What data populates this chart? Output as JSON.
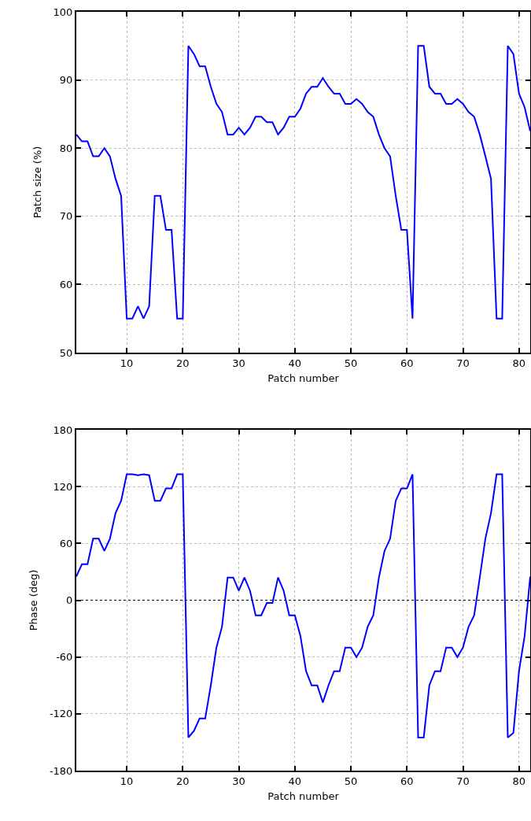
{
  "chart_data": [
    {
      "type": "line",
      "xlabel": "Patch number",
      "ylabel": "Patch size (%)",
      "x": [
        1,
        2,
        3,
        4,
        5,
        6,
        7,
        8,
        9,
        10,
        11,
        12,
        13,
        14,
        15,
        16,
        17,
        18,
        19,
        20,
        21,
        22,
        23,
        24,
        25,
        26,
        27,
        28,
        29,
        30,
        31,
        32,
        33,
        34,
        35,
        36,
        37,
        38,
        39,
        40,
        41,
        42,
        43,
        44,
        45,
        46,
        47,
        48,
        49,
        50,
        51,
        52,
        53,
        54,
        55,
        56,
        57,
        58,
        59,
        60,
        61,
        62,
        63,
        64,
        65,
        66,
        67,
        68,
        69,
        70,
        71,
        72,
        73,
        74,
        75,
        76,
        77,
        78,
        79,
        80,
        81,
        82
      ],
      "series": [
        {
          "color": "#0000ff",
          "values": [
            82,
            81,
            81,
            78.8,
            78.8,
            80,
            78.8,
            75.5,
            73,
            55,
            55,
            56.8,
            55,
            56.8,
            73,
            73,
            68,
            68,
            55,
            55,
            95,
            93.8,
            92,
            92,
            89,
            86.5,
            85.3,
            82,
            82,
            83,
            82,
            83,
            84.6,
            84.6,
            83.8,
            83.8,
            82,
            83,
            84.6,
            84.6,
            85.8,
            88,
            89,
            89,
            90.3,
            89,
            88,
            88,
            86.5,
            86.5,
            87.2,
            86.5,
            85.3,
            84.6,
            82,
            80,
            78.8,
            73,
            68,
            68,
            55,
            95,
            95,
            89,
            88,
            88,
            86.5,
            86.5,
            87.2,
            86.5,
            85.3,
            84.6,
            82,
            78.8,
            75.5,
            55,
            55,
            95,
            93.8,
            88,
            86,
            82.5
          ]
        }
      ],
      "xlim": [
        1,
        82
      ],
      "xticks": [
        10,
        20,
        30,
        40,
        50,
        60,
        70,
        80
      ],
      "ylim": [
        50,
        100
      ],
      "yticks": [
        50,
        60,
        70,
        80,
        90,
        100
      ],
      "grid": true,
      "marker": "none",
      "line_style": "solid"
    },
    {
      "type": "line",
      "xlabel": "Patch number",
      "ylabel": "Phase (deg)",
      "x": [
        1,
        2,
        3,
        4,
        5,
        6,
        7,
        8,
        9,
        10,
        11,
        12,
        13,
        14,
        15,
        16,
        17,
        18,
        19,
        20,
        21,
        22,
        23,
        24,
        25,
        26,
        27,
        28,
        29,
        30,
        31,
        32,
        33,
        34,
        35,
        36,
        37,
        38,
        39,
        40,
        41,
        42,
        43,
        44,
        45,
        46,
        47,
        48,
        49,
        50,
        51,
        52,
        53,
        54,
        55,
        56,
        57,
        58,
        59,
        60,
        61,
        62,
        63,
        64,
        65,
        66,
        67,
        68,
        69,
        70,
        71,
        72,
        73,
        74,
        75,
        76,
        77,
        78,
        79,
        80,
        81,
        82
      ],
      "series": [
        {
          "color": "#0000ff",
          "values": [
            25,
            38,
            38,
            65,
            65,
            52,
            65,
            92,
            105,
            133,
            133,
            132,
            133,
            132,
            105,
            105,
            118,
            118,
            133,
            133,
            -145,
            -138,
            -125,
            -125,
            -90,
            -50,
            -28,
            24,
            24,
            10,
            24,
            10,
            -16,
            -16,
            -3,
            -3,
            24,
            10,
            -16,
            -16,
            -38,
            -75,
            -90,
            -90,
            -108,
            -90,
            -75,
            -75,
            -50,
            -50,
            -60,
            -50,
            -28,
            -16,
            24,
            52,
            65,
            105,
            118,
            118,
            133,
            -145,
            -145,
            -90,
            -75,
            -75,
            -50,
            -50,
            -60,
            -50,
            -28,
            -16,
            24,
            65,
            92,
            133,
            133,
            -145,
            -140,
            -75,
            -38,
            25
          ]
        }
      ],
      "xlim": [
        1,
        82
      ],
      "xticks": [
        10,
        20,
        30,
        40,
        50,
        60,
        70,
        80
      ],
      "ylim": [
        -180,
        180
      ],
      "yticks": [
        -180,
        -120,
        -60,
        0,
        60,
        120,
        180
      ],
      "grid": true,
      "marker": "none",
      "line_style": "solid",
      "ref_lines": [
        {
          "axis": "y",
          "value": 0,
          "color": "#000000",
          "line_style": "dotted"
        }
      ]
    }
  ]
}
